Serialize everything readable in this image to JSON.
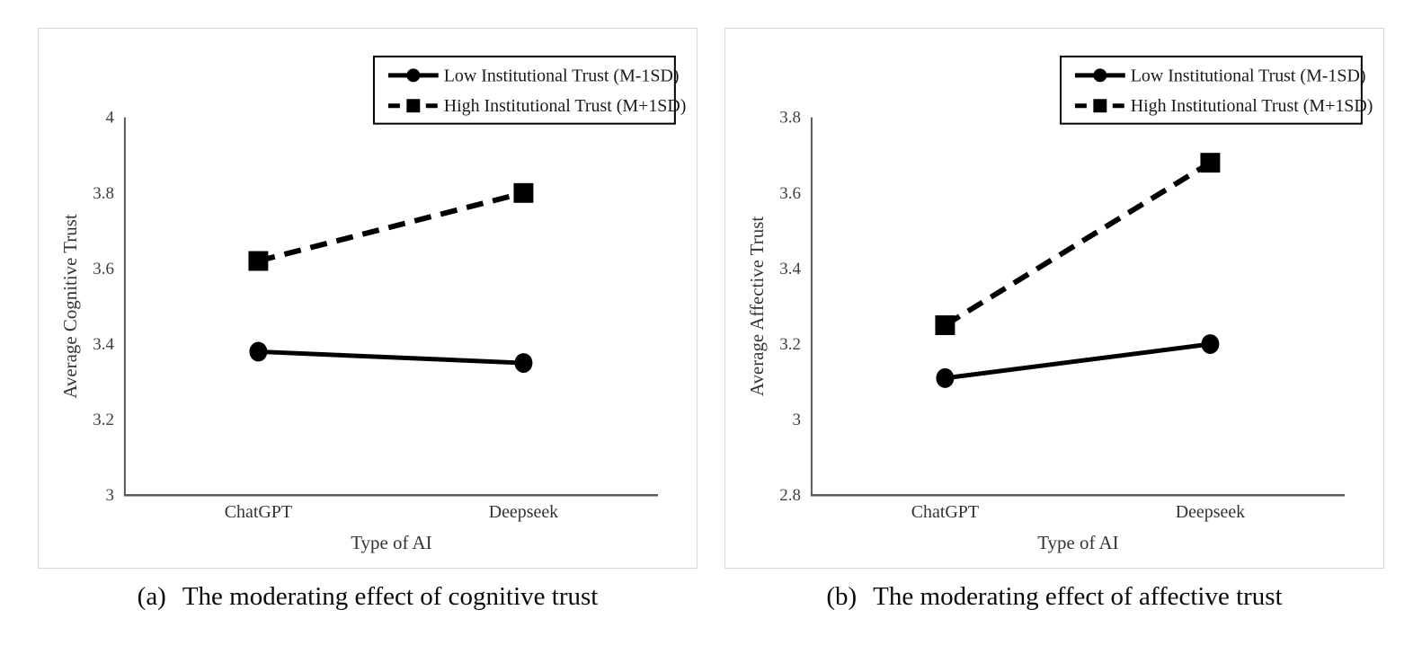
{
  "figure": {
    "captions": [
      {
        "prefix": "(a)",
        "text": "The moderating effect of cognitive trust"
      },
      {
        "prefix": "(b)",
        "text": "The moderating effect of affective trust"
      }
    ]
  },
  "colors": {
    "series": "#000000",
    "axis_line": "#595959",
    "tick_label": "#3f3f3f",
    "axis_title": "#333333",
    "legend_text": "#1a1a1a",
    "legend_border": "#000000",
    "panel_border": "#d9d9d9",
    "background": "#ffffff"
  },
  "chart_data": [
    {
      "id": "cognitive",
      "type": "line",
      "title": "",
      "categories": [
        "ChatGPT",
        "Deepseek"
      ],
      "xlabel": "Type of AI",
      "ylabel": "Average Cognitive Trust",
      "ylim": [
        3,
        4
      ],
      "yticks": [
        3,
        3.2,
        3.4,
        3.6,
        3.8,
        4
      ],
      "grid": false,
      "legend_position": "top-right",
      "series": [
        {
          "name": "Low Institutional Trust (M-1SD)",
          "marker": "circle",
          "line": "solid",
          "values": [
            3.38,
            3.35
          ]
        },
        {
          "name": "High Institutional Trust (M+1SD)",
          "marker": "square",
          "line": "dashed",
          "values": [
            3.62,
            3.8
          ]
        }
      ]
    },
    {
      "id": "affective",
      "type": "line",
      "title": "",
      "categories": [
        "ChatGPT",
        "Deepseek"
      ],
      "xlabel": "Type of AI",
      "ylabel": "Average Affective Trust",
      "ylim": [
        2.8,
        3.8
      ],
      "yticks": [
        2.8,
        3,
        3.2,
        3.4,
        3.6,
        3.8
      ],
      "grid": false,
      "legend_position": "top-right",
      "series": [
        {
          "name": "Low Institutional Trust (M-1SD)",
          "marker": "circle",
          "line": "solid",
          "values": [
            3.11,
            3.2
          ]
        },
        {
          "name": "High Institutional Trust (M+1SD)",
          "marker": "square",
          "line": "dashed",
          "values": [
            3.25,
            3.68
          ]
        }
      ]
    }
  ]
}
